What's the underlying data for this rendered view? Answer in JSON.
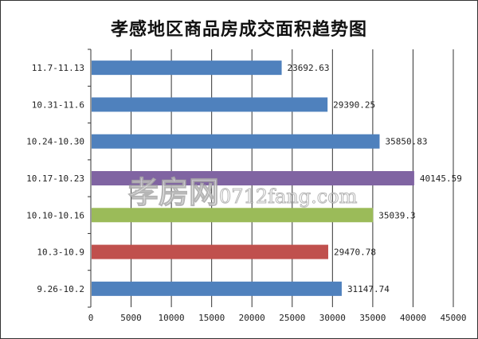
{
  "chart_data": {
    "type": "bar",
    "orientation": "horizontal",
    "title": "孝感地区商品房成交面积趋势图",
    "categories": [
      "11.7-11.13",
      "10.31-11.6",
      "10.24-10.30",
      "10.17-10.23",
      "10.10-10.16",
      "10.3-10.9",
      "9.26-10.2"
    ],
    "values": [
      23692.63,
      29390.25,
      35850.83,
      40145.59,
      35039.3,
      29470.78,
      31147.74
    ],
    "labels": [
      "23692.63",
      "29390.25",
      "35850.83",
      "40145.59",
      "35039.3",
      "29470.78",
      "31147.74"
    ],
    "colors": [
      "#4f81bd",
      "#4f81bd",
      "#4f81bd",
      "#8064a2",
      "#9bbb59",
      "#c0504d",
      "#4f81bd"
    ],
    "xlim": [
      0,
      45000
    ],
    "xticks": [
      0,
      5000,
      10000,
      15000,
      20000,
      25000,
      30000,
      35000,
      40000,
      45000
    ],
    "grid": true,
    "xlabel": "",
    "ylabel": ""
  },
  "watermark": {
    "cn": "孝房网",
    "url": "0712fang.com"
  }
}
